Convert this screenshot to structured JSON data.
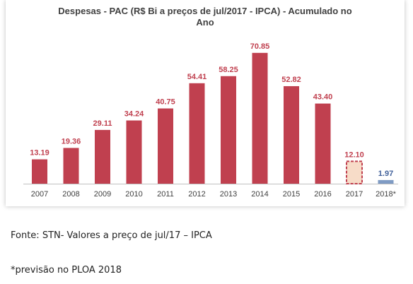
{
  "chart_data": {
    "type": "bar",
    "title_line1": "Despesas - PAC (R$ Bi a preços de jul/2017 - IPCA) - Acumulado no",
    "title_line2": "Ano",
    "categories": [
      "2007",
      "2008",
      "2009",
      "2010",
      "2011",
      "2012",
      "2013",
      "2014",
      "2015",
      "2016",
      "2017",
      "2018*"
    ],
    "values": [
      13.19,
      19.36,
      29.11,
      34.24,
      40.75,
      54.41,
      58.25,
      70.85,
      52.82,
      43.4,
      12.1,
      1.97
    ],
    "data_labels": [
      "13.19",
      "19.36",
      "29.11",
      "34.24",
      "40.75",
      "54.41",
      "58.25",
      "70.85",
      "52.82",
      "43.40",
      "12.10",
      "1.97"
    ],
    "styles": [
      "solid",
      "solid",
      "solid",
      "solid",
      "solid",
      "solid",
      "solid",
      "solid",
      "solid",
      "solid",
      "dashed",
      "blue"
    ],
    "ylim": [
      0,
      75
    ],
    "grid": false,
    "legend": "none",
    "colors": {
      "bar": "#c0404f",
      "label": "#c0404f",
      "forecast_fill": "#f7dcc8",
      "forecast_border": "#c0404f",
      "projection": "#7f9bc4",
      "projection_label": "#3f5f99",
      "axis": "#bfbfbf",
      "tick_text": "#404040"
    }
  },
  "notes": {
    "source": "Fonte: STN- Valores a preço de jul/17 – IPCA",
    "forecast": "*previsão no PLOA 2018"
  }
}
